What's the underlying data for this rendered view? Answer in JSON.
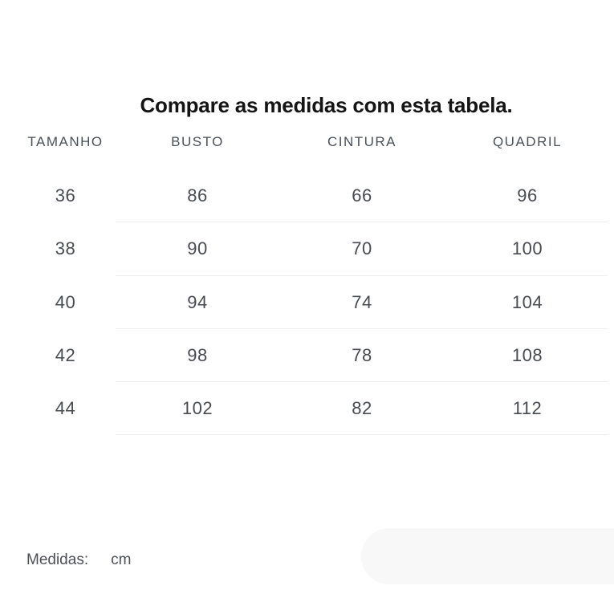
{
  "title": "Compare as medidas com esta tabela.",
  "table": {
    "columns": [
      "TAMANHO",
      "BUSTO",
      "CINTURA",
      "QUADRIL"
    ],
    "rows": [
      [
        "36",
        "86",
        "66",
        "96"
      ],
      [
        "38",
        "90",
        "70",
        "100"
      ],
      [
        "40",
        "94",
        "74",
        "104"
      ],
      [
        "42",
        "98",
        "78",
        "108"
      ],
      [
        "44",
        "102",
        "82",
        "112"
      ]
    ]
  },
  "footer": {
    "label": "Medidas:",
    "value": "cm"
  },
  "colors": {
    "title_text": "#141414",
    "table_text": "#474b50",
    "header_text": "#4b5158",
    "divider": "#ededed",
    "pill_background": "#f8f8f8",
    "page_background": "#ffffff"
  }
}
